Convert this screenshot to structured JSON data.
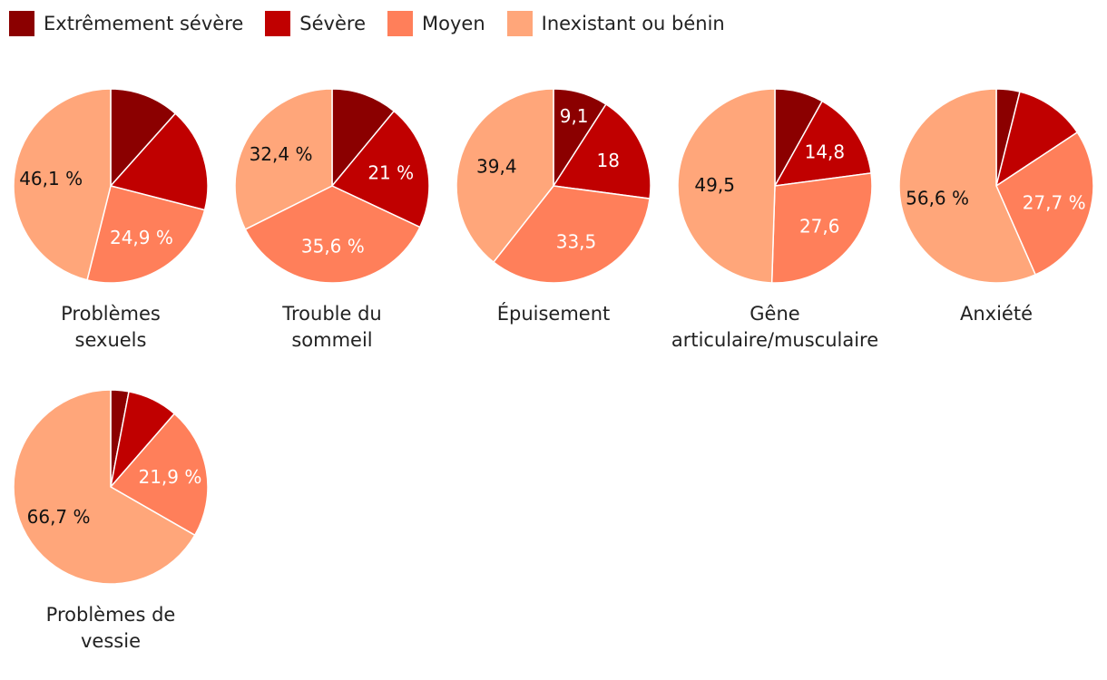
{
  "chart_data": {
    "type": "pie",
    "title": "",
    "legend": {
      "position": "top-left",
      "entries": [
        {
          "name": "Extrêmement sévère",
          "color": "#8b0000"
        },
        {
          "name": "Sévère",
          "color": "#c00000"
        },
        {
          "name": "Moyen",
          "color": "#ff7f5a"
        },
        {
          "name": "Inexistant ou bénin",
          "color": "#ffa67a"
        }
      ]
    },
    "pies": [
      {
        "title_lines": [
          "Problèmes",
          "sexuels"
        ],
        "slices": [
          {
            "category": "Extrêmement sévère",
            "value": 11.6,
            "label": ""
          },
          {
            "category": "Sévère",
            "value": 17.4,
            "label": ""
          },
          {
            "category": "Moyen",
            "value": 24.9,
            "label": "24,9 %"
          },
          {
            "category": "Inexistant ou bénin",
            "value": 46.1,
            "label": "46,1 %"
          }
        ]
      },
      {
        "title_lines": [
          "Trouble du",
          "sommeil"
        ],
        "slices": [
          {
            "category": "Extrêmement sévère",
            "value": 11.0,
            "label": ""
          },
          {
            "category": "Sévère",
            "value": 21.0,
            "label": "21 %"
          },
          {
            "category": "Moyen",
            "value": 35.6,
            "label": "35,6 %"
          },
          {
            "category": "Inexistant ou bénin",
            "value": 32.4,
            "label": "32,4 %"
          }
        ]
      },
      {
        "title_lines": [
          "Épuisement"
        ],
        "slices": [
          {
            "category": "Extrêmement sévère",
            "value": 9.1,
            "label": "9,1"
          },
          {
            "category": "Sévère",
            "value": 18.0,
            "label": "18"
          },
          {
            "category": "Moyen",
            "value": 33.5,
            "label": "33,5"
          },
          {
            "category": "Inexistant ou bénin",
            "value": 39.4,
            "label": "39,4"
          }
        ]
      },
      {
        "title_lines": [
          "Gêne",
          "articulaire/musculaire"
        ],
        "slices": [
          {
            "category": "Extrêmement sévère",
            "value": 8.1,
            "label": ""
          },
          {
            "category": "Sévère",
            "value": 14.8,
            "label": "14,8"
          },
          {
            "category": "Moyen",
            "value": 27.6,
            "label": "27,6"
          },
          {
            "category": "Inexistant ou bénin",
            "value": 49.5,
            "label": "49,5"
          }
        ]
      },
      {
        "title_lines": [
          "Anxiété"
        ],
        "slices": [
          {
            "category": "Extrêmement sévère",
            "value": 3.9,
            "label": ""
          },
          {
            "category": "Sévère",
            "value": 11.8,
            "label": ""
          },
          {
            "category": "Moyen",
            "value": 27.7,
            "label": "27,7 %"
          },
          {
            "category": "Inexistant ou bénin",
            "value": 56.6,
            "label": "56,6 %"
          }
        ]
      },
      {
        "title_lines": [
          "Problèmes de",
          "vessie"
        ],
        "slices": [
          {
            "category": "Extrêmement sévère",
            "value": 3.0,
            "label": ""
          },
          {
            "category": "Sévère",
            "value": 8.4,
            "label": ""
          },
          {
            "category": "Moyen",
            "value": 21.9,
            "label": "21,9 %"
          },
          {
            "category": "Inexistant ou bénin",
            "value": 66.7,
            "label": "66,7 %"
          }
        ]
      }
    ]
  }
}
